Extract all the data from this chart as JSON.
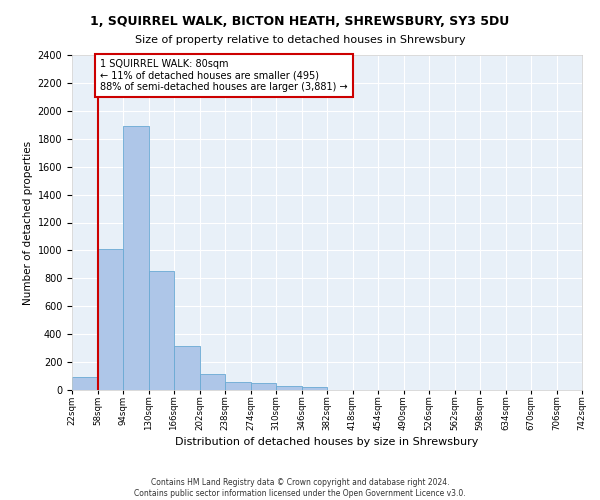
{
  "title": "1, SQUIRREL WALK, BICTON HEATH, SHREWSBURY, SY3 5DU",
  "subtitle": "Size of property relative to detached houses in Shrewsbury",
  "xlabel": "Distribution of detached houses by size in Shrewsbury",
  "ylabel": "Number of detached properties",
  "bar_values": [
    90,
    1010,
    1890,
    855,
    315,
    115,
    58,
    50,
    30,
    22,
    0,
    0,
    0,
    0,
    0,
    0,
    0,
    0,
    0,
    0
  ],
  "bin_labels": [
    "22sqm",
    "58sqm",
    "94sqm",
    "130sqm",
    "166sqm",
    "202sqm",
    "238sqm",
    "274sqm",
    "310sqm",
    "346sqm",
    "382sqm",
    "418sqm",
    "454sqm",
    "490sqm",
    "526sqm",
    "562sqm",
    "598sqm",
    "634sqm",
    "670sqm",
    "706sqm",
    "742sqm"
  ],
  "bar_color": "#aec6e8",
  "bar_edge_color": "#6aaad4",
  "property_line_color": "#cc0000",
  "annotation_text": "1 SQUIRREL WALK: 80sqm\n← 11% of detached houses are smaller (495)\n88% of semi-detached houses are larger (3,881) →",
  "annotation_box_color": "#cc0000",
  "ylim": [
    0,
    2400
  ],
  "yticks": [
    0,
    200,
    400,
    600,
    800,
    1000,
    1200,
    1400,
    1600,
    1800,
    2000,
    2200,
    2400
  ],
  "footer_line1": "Contains HM Land Registry data © Crown copyright and database right 2024.",
  "footer_line2": "Contains public sector information licensed under the Open Government Licence v3.0.",
  "plot_bg_color": "#e8f0f8",
  "grid_color": "#ffffff"
}
